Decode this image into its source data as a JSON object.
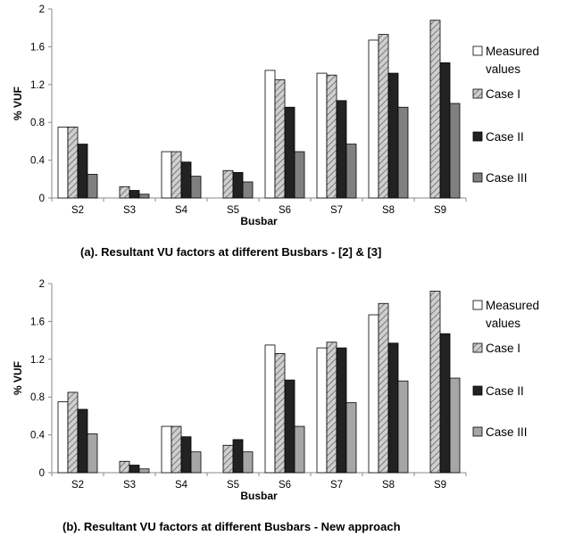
{
  "chart_data": [
    {
      "type": "bar",
      "title": "(a).  Resultant VU factors at different Busbars - [2] & [3]",
      "xlabel": "Busbar",
      "ylabel": "% VUF",
      "ylim": [
        0,
        2
      ],
      "yticks": [
        "0",
        "0.4",
        "0.8",
        "1.2",
        "1.6",
        "2"
      ],
      "categories": [
        "S2",
        "S3",
        "S4",
        "S5",
        "S6",
        "S7",
        "S8",
        "S9"
      ],
      "legend_position": "right",
      "series": [
        {
          "name": "Measured values",
          "fill": "#ffffff",
          "hatch": false,
          "values": [
            0.75,
            0.0,
            0.49,
            0.0,
            1.35,
            1.32,
            1.67,
            0.0
          ]
        },
        {
          "name": "Case I",
          "fill": "#c8c8c8",
          "hatch": true,
          "values": [
            0.75,
            0.12,
            0.49,
            0.29,
            1.25,
            1.3,
            1.73,
            1.88
          ]
        },
        {
          "name": "Case II",
          "fill": "#222222",
          "hatch": false,
          "values": [
            0.57,
            0.08,
            0.38,
            0.27,
            0.96,
            1.03,
            1.32,
            1.43
          ]
        },
        {
          "name": "Case III",
          "fill": "#808080",
          "hatch": false,
          "values": [
            0.25,
            0.04,
            0.23,
            0.17,
            0.49,
            0.57,
            0.96,
            1.0
          ]
        }
      ]
    },
    {
      "type": "bar",
      "title": "(b).  Resultant VU factors at different Busbars - New approach",
      "xlabel": "Busbar",
      "ylabel": "% VUF",
      "ylim": [
        0,
        2
      ],
      "yticks": [
        "0",
        "0.4",
        "0.8",
        "1.2",
        "1.6",
        "2"
      ],
      "categories": [
        "S2",
        "S3",
        "S4",
        "S5",
        "S6",
        "S7",
        "S8",
        "S9"
      ],
      "legend_position": "right",
      "series": [
        {
          "name": "Measured values",
          "fill": "#ffffff",
          "hatch": false,
          "values": [
            0.75,
            0.0,
            0.49,
            0.0,
            1.35,
            1.32,
            1.67,
            0.0
          ]
        },
        {
          "name": "Case I",
          "fill": "#c8c8c8",
          "hatch": true,
          "values": [
            0.85,
            0.12,
            0.49,
            0.29,
            1.26,
            1.38,
            1.79,
            1.92
          ]
        },
        {
          "name": "Case II",
          "fill": "#222222",
          "hatch": false,
          "values": [
            0.67,
            0.08,
            0.38,
            0.35,
            0.98,
            1.32,
            1.37,
            1.47
          ]
        },
        {
          "name": "Case III",
          "fill": "#a6a6a6",
          "hatch": false,
          "values": [
            0.41,
            0.04,
            0.22,
            0.22,
            0.49,
            0.74,
            0.97,
            1.0
          ]
        }
      ]
    }
  ]
}
